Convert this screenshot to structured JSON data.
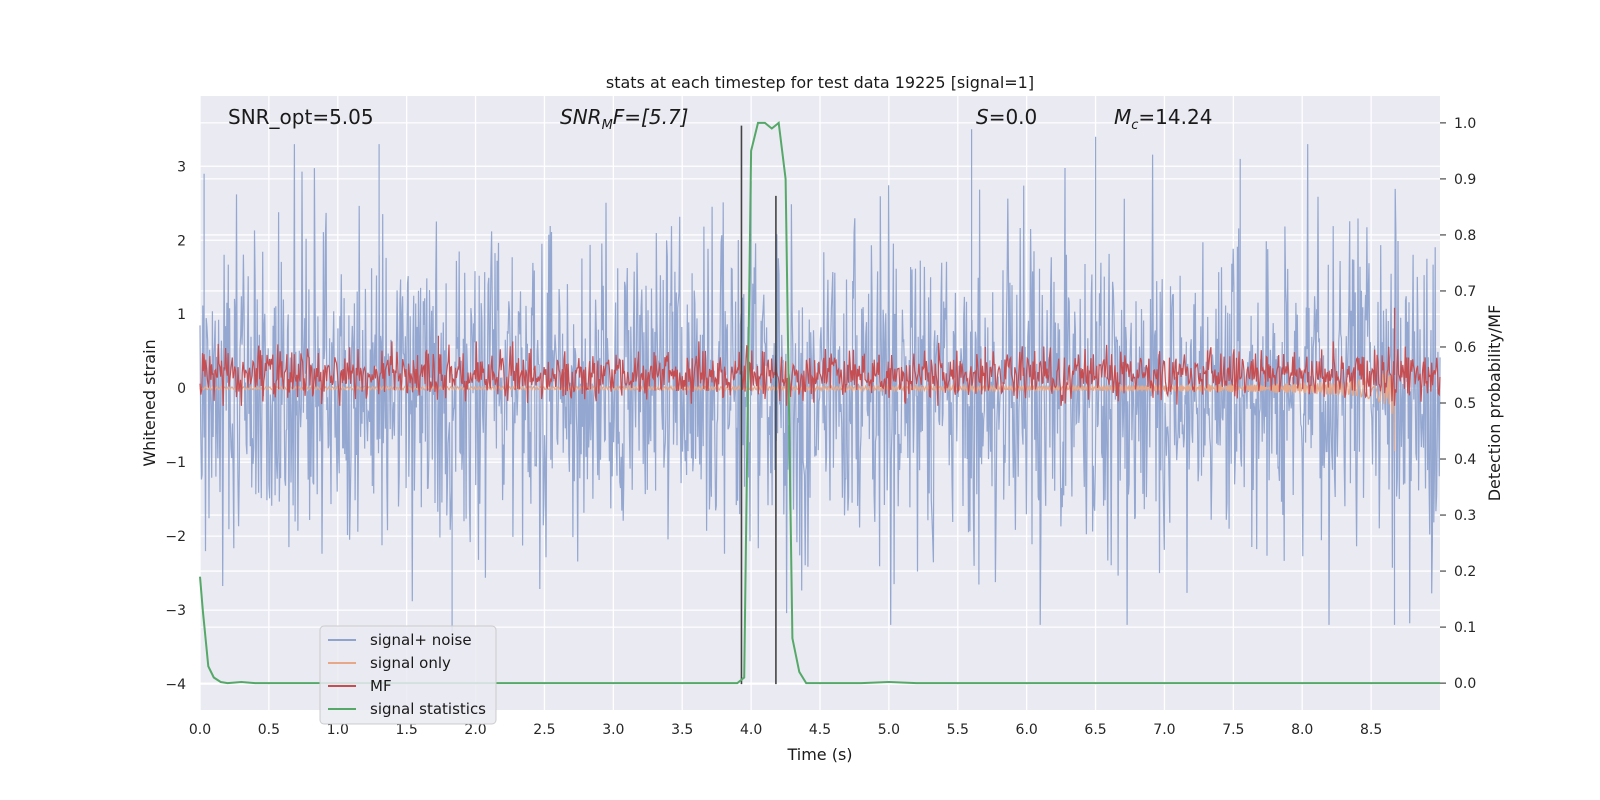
{
  "chart_data": {
    "type": "line",
    "title": "stats at each timestep for test data 19225 [signal=1]",
    "xlabel": "Time (s)",
    "ylabel": "Whitened strain",
    "y2label": "Detection probability/MF",
    "xlim": [
      0.0,
      9.0
    ],
    "ylim": [
      -4.35,
      3.95
    ],
    "y2lim": [
      -0.048,
      1.048
    ],
    "x_ticks": [
      "0.0",
      "0.5",
      "1.0",
      "1.5",
      "2.0",
      "2.5",
      "3.0",
      "3.5",
      "4.0",
      "4.5",
      "5.0",
      "5.5",
      "6.0",
      "6.5",
      "7.0",
      "7.5",
      "8.0",
      "8.5"
    ],
    "y_ticks": [
      "3",
      "2",
      "1",
      "0",
      "−1",
      "−2",
      "−3",
      "−4"
    ],
    "y2_ticks": [
      "1.0",
      "0.9",
      "0.8",
      "0.7",
      "0.6",
      "0.5",
      "0.4",
      "0.3",
      "0.2",
      "0.1",
      "0.0"
    ],
    "grid": true,
    "legend_position": "lower-left",
    "annotations": {
      "snr_opt": "SNR_opt=5.05",
      "snr_mf_main": "SNR",
      "snr_mf_sub": "M",
      "snr_mf_rest": "F=[5.7]",
      "s_main": "S",
      "s_rest": "=0.0",
      "mc_main": "M",
      "mc_sub": "c",
      "mc_rest": "=14.24"
    },
    "series": [
      {
        "name": "signal+ noise",
        "color": "#8fa3cd",
        "axis": "left",
        "description_range": [
          -3.2,
          3.5
        ],
        "sample_peaks": [
          [
            0.03,
            2.9
          ],
          [
            1.3,
            3.3
          ],
          [
            1.83,
            -3.3
          ],
          [
            4.0,
            2.8
          ],
          [
            5.6,
            3.5
          ],
          [
            6.5,
            3.4
          ],
          [
            7.55,
            3.1
          ],
          [
            8.67,
            -3.2
          ]
        ]
      },
      {
        "name": "signal only",
        "color": "#e8a888",
        "axis": "left",
        "chirp_peak_time": 8.67,
        "chirp_min": -0.85
      },
      {
        "name": "MF",
        "color": "#c44e52",
        "axis": "right",
        "baseline": 0.55,
        "sample_peaks": [
          [
            1.73,
            0.62
          ],
          [
            5.7,
            0.6
          ],
          [
            8.67,
            0.67
          ]
        ]
      },
      {
        "name": "signal statistics",
        "color": "#55a868",
        "axis": "right",
        "x": [
          0.0,
          0.02,
          0.06,
          0.1,
          0.15,
          0.2,
          0.3,
          0.4,
          0.5,
          1.0,
          1.5,
          2.0,
          2.5,
          3.0,
          3.5,
          3.9,
          3.95,
          4.0,
          4.05,
          4.1,
          4.15,
          4.2,
          4.25,
          4.3,
          4.35,
          4.4,
          4.5,
          4.8,
          5.0,
          5.2,
          6.0,
          7.0,
          8.0,
          9.0
        ],
        "y": [
          0.19,
          0.13,
          0.03,
          0.01,
          0.002,
          0.0,
          0.002,
          0.0,
          0.0,
          0.0,
          0.0,
          0.0,
          0.0,
          0.0,
          0.0,
          0.0,
          0.01,
          0.95,
          1.0,
          1.0,
          0.99,
          1.0,
          0.9,
          0.08,
          0.02,
          0.0,
          0.0,
          0.0,
          0.002,
          0.0,
          0.0,
          0.0,
          0.0,
          0.0
        ]
      }
    ],
    "markers": {
      "vertical_lines": [
        {
          "x": 3.93,
          "y": [
            -4.0,
            3.55
          ]
        },
        {
          "x": 4.18,
          "y": [
            -4.0,
            2.6
          ]
        }
      ]
    }
  }
}
